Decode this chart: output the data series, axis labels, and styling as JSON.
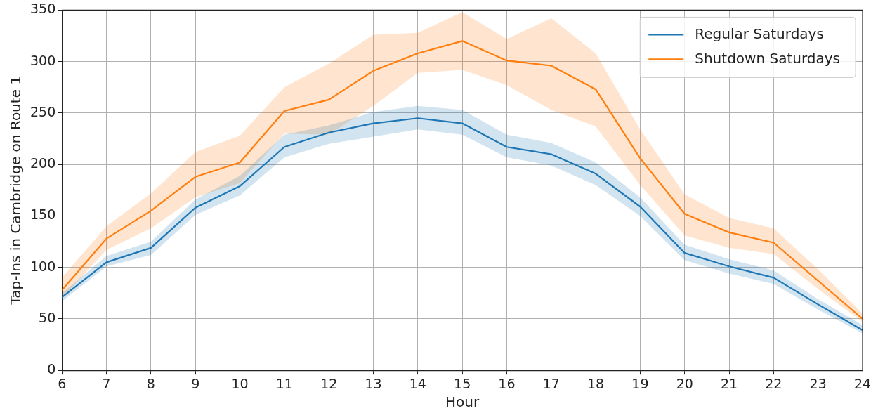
{
  "chart_data": {
    "type": "line",
    "xlabel": "Hour",
    "ylabel": "Tap-Ins in Cambridge on Route 1",
    "x": [
      6,
      7,
      8,
      9,
      10,
      11,
      12,
      13,
      14,
      15,
      16,
      17,
      18,
      19,
      20,
      21,
      22,
      23,
      24
    ],
    "series": [
      {
        "name": "Regular Saturdays",
        "color": "#1f77b4",
        "values": [
          71,
          105,
          119,
          158,
          179,
          217,
          231,
          240,
          245,
          240,
          217,
          210,
          191,
          159,
          114,
          101,
          90,
          64,
          39
        ],
        "lower": [
          67,
          101,
          112,
          151,
          170,
          207,
          220,
          227,
          234,
          229,
          207,
          199,
          180,
          150,
          107,
          94,
          84,
          59,
          36
        ],
        "upper": [
          75,
          111,
          125,
          166,
          189,
          229,
          238,
          251,
          257,
          253,
          229,
          221,
          202,
          168,
          122,
          108,
          97,
          69,
          44
        ]
      },
      {
        "name": "Shutdown Saturdays",
        "color": "#ff7f0e",
        "values": [
          78,
          128,
          155,
          188,
          202,
          252,
          263,
          291,
          308,
          320,
          301,
          296,
          273,
          206,
          152,
          134,
          124,
          87,
          50
        ],
        "lower": [
          70,
          117,
          138,
          168,
          182,
          230,
          229,
          257,
          289,
          292,
          277,
          253,
          237,
          180,
          131,
          119,
          113,
          79,
          47
        ],
        "upper": [
          90,
          140,
          172,
          212,
          228,
          275,
          298,
          326,
          328,
          348,
          322,
          342,
          308,
          234,
          171,
          148,
          138,
          98,
          55
        ]
      }
    ],
    "xlim": [
      6,
      24
    ],
    "xticks": [
      6,
      7,
      8,
      9,
      10,
      11,
      12,
      13,
      14,
      15,
      16,
      17,
      18,
      19,
      20,
      21,
      22,
      23,
      24
    ],
    "ylim": [
      0,
      350
    ],
    "yticks": [
      0,
      50,
      100,
      150,
      200,
      250,
      300,
      350
    ],
    "grid": true,
    "legend": "top right",
    "marker": "none",
    "line_style": "solid"
  }
}
